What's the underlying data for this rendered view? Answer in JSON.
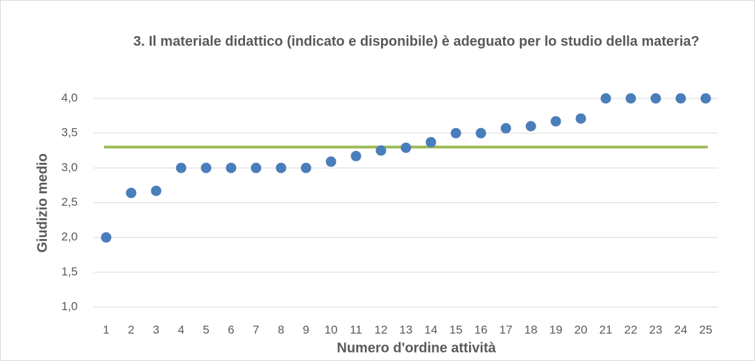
{
  "chart_data": {
    "type": "scatter",
    "title": "3. Il materiale didattico (indicato e disponibile) è adeguato per lo studio della materia?",
    "x_label": "Numero d'ordine attività",
    "y_label": "Giudizio medio",
    "categories": [
      "1",
      "2",
      "3",
      "4",
      "5",
      "6",
      "7",
      "8",
      "9",
      "10",
      "11",
      "12",
      "13",
      "14",
      "15",
      "16",
      "17",
      "18",
      "19",
      "20",
      "21",
      "22",
      "23",
      "24",
      "25"
    ],
    "values": [
      2.0,
      2.64,
      2.67,
      3.0,
      3.0,
      3.0,
      3.0,
      3.0,
      3.0,
      3.09,
      3.17,
      3.25,
      3.29,
      3.37,
      3.5,
      3.5,
      3.57,
      3.6,
      3.67,
      3.71,
      4.0,
      4.0,
      4.0,
      4.0,
      4.0
    ],
    "color": "#4a7ebb",
    "reference_line": {
      "value": 3.3,
      "color": "#9bbb59"
    },
    "ylim": [
      1,
      4
    ],
    "yticks": [
      {
        "value": 1,
        "label": "1,0"
      },
      {
        "value": 1.5,
        "label": "1,5"
      },
      {
        "value": 2,
        "label": "2,0"
      },
      {
        "value": 2.5,
        "label": "2,5"
      },
      {
        "value": 3,
        "label": "3,0"
      },
      {
        "value": 3.5,
        "label": "3,5"
      },
      {
        "value": 4,
        "label": "4,0"
      }
    ],
    "grid": true
  }
}
